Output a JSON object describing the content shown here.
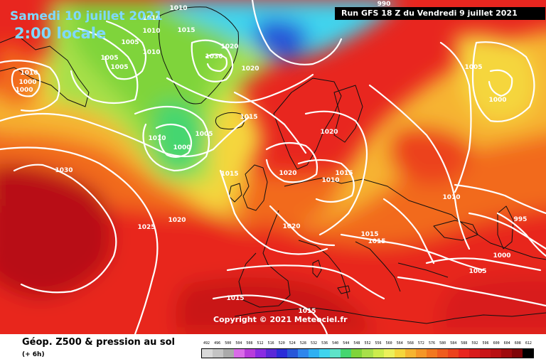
{
  "header": {
    "date": "Samedi 10 juillet 2021",
    "time": "2:00 locale",
    "run": "Run GFS 18 Z du Vendredi 9 juillet 2021"
  },
  "footer": {
    "title": "Géop. Z500 & pression au sol",
    "offset": "(+ 6h)"
  },
  "copyright": "Copyright © 2021 Meteociel.fr",
  "colors": {
    "ocean_deep": "#c91518",
    "hot": "#e8261f",
    "orange": "#f26a1f",
    "yellow": "#f5d63c",
    "green": "#7fd43a",
    "cyan": "#3fd4ee",
    "blue": "#2857d8",
    "isobar": "#ffffff",
    "coast": "#111111"
  },
  "pressure_labels": [
    "990",
    "1010",
    "1010",
    "1015",
    "1005",
    "1010",
    "1010",
    "1020",
    "1030",
    "1005",
    "1005",
    "1010",
    "1000",
    "1000",
    "1020",
    "1015",
    "1010",
    "1005",
    "1000",
    "1030",
    "1015",
    "1020",
    "1015",
    "1010",
    "1025",
    "1020",
    "1020",
    "1020",
    "1015",
    "1015",
    "1010",
    "1000",
    "1005",
    "995",
    "1000",
    "1005",
    "1015",
    "1015"
  ],
  "legend": {
    "levels": [
      "492",
      "496",
      "500",
      "504",
      "508",
      "512",
      "516",
      "520",
      "524",
      "528",
      "532",
      "536",
      "540",
      "544",
      "548",
      "552",
      "556",
      "560",
      "564",
      "568",
      "572",
      "576",
      "580",
      "584",
      "588",
      "592",
      "596",
      "600",
      "604",
      "608",
      "612"
    ],
    "colors": [
      "#d9d9d9",
      "#c4c4c4",
      "#aaaaaa",
      "#d96be8",
      "#b83cdb",
      "#8a2be2",
      "#5a28d8",
      "#2a2cd8",
      "#2857d8",
      "#2f86ec",
      "#2fb0f2",
      "#3fd4ee",
      "#5ee3c8",
      "#45d670",
      "#7fd43a",
      "#a8e04a",
      "#ccec4c",
      "#ecf05a",
      "#f5d63c",
      "#f6b430",
      "#f59627",
      "#f2781f",
      "#ef5c1e",
      "#ec421d",
      "#e8261f",
      "#d81b1b",
      "#c91518",
      "#b80f12",
      "#9f0a0d",
      "#7f0508",
      "#000000"
    ]
  }
}
